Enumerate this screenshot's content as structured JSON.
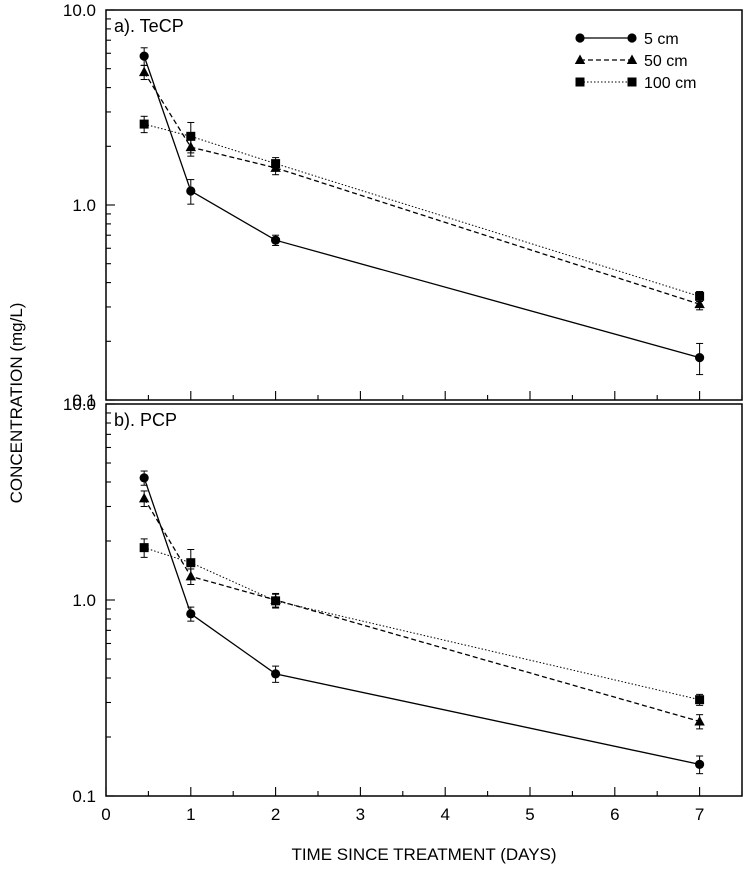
{
  "chart_data": {
    "type": "line",
    "xlabel": "TIME SINCE TREATMENT (DAYS)",
    "ylabel": "CONCENTRATION (mg/L)",
    "xlim": [
      0,
      7.5
    ],
    "xticks": [
      "0",
      "1",
      "2",
      "3",
      "4",
      "5",
      "6",
      "7"
    ],
    "yscale": "log",
    "ylim": [
      0.1,
      10.0
    ],
    "yticks": [
      "0.1",
      "1.0",
      "10.0"
    ],
    "legend": "top-right",
    "legend_entries": [
      "5 cm",
      "50 cm",
      "100 cm"
    ],
    "colors": {
      "lines": "#000000",
      "background": "#ffffff"
    },
    "panels": [
      {
        "label": "a). TeCP",
        "x": [
          0.45,
          1,
          2,
          7
        ],
        "series": [
          {
            "name": "5 cm",
            "marker": "circle",
            "line": "solid",
            "values": [
              5.8,
              1.18,
              0.66,
              0.165
            ],
            "errors": [
              0.6,
              0.17,
              0.04,
              0.03
            ]
          },
          {
            "name": "50 cm",
            "marker": "triangle",
            "line": "dashed",
            "values": [
              4.8,
              1.98,
              1.55,
              0.31
            ],
            "errors": [
              0.4,
              0.2,
              0.12,
              0.02
            ]
          },
          {
            "name": "100 cm",
            "marker": "square",
            "line": "dotted",
            "values": [
              2.6,
              2.25,
              1.63,
              0.34
            ],
            "errors": [
              0.25,
              0.4,
              0.12,
              0.02
            ]
          }
        ]
      },
      {
        "label": "b). PCP",
        "x": [
          0.45,
          1,
          2,
          7
        ],
        "series": [
          {
            "name": "5 cm",
            "marker": "circle",
            "line": "solid",
            "values": [
              4.2,
              0.85,
              0.42,
              0.145
            ],
            "errors": [
              0.35,
              0.07,
              0.04,
              0.015
            ]
          },
          {
            "name": "50 cm",
            "marker": "triangle",
            "line": "dashed",
            "values": [
              3.3,
              1.32,
              1.0,
              0.24
            ],
            "errors": [
              0.3,
              0.12,
              0.08,
              0.02
            ]
          },
          {
            "name": "100 cm",
            "marker": "square",
            "line": "dotted",
            "values": [
              1.85,
              1.55,
              0.99,
              0.31
            ],
            "errors": [
              0.2,
              0.26,
              0.08,
              0.02
            ]
          }
        ]
      }
    ]
  }
}
